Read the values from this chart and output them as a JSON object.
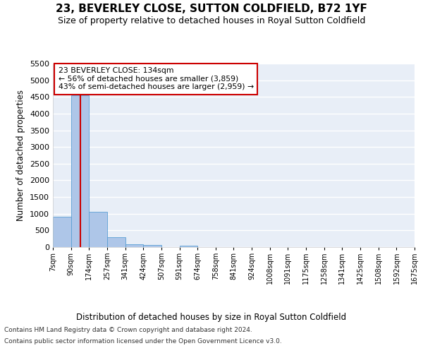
{
  "title": "23, BEVERLEY CLOSE, SUTTON COLDFIELD, B72 1YF",
  "subtitle": "Size of property relative to detached houses in Royal Sutton Coldfield",
  "xlabel": "Distribution of detached houses by size in Royal Sutton Coldfield",
  "ylabel": "Number of detached properties",
  "footnote1": "Contains HM Land Registry data © Crown copyright and database right 2024.",
  "footnote2": "Contains public sector information licensed under the Open Government Licence v3.0.",
  "property_size": 134,
  "property_label": "23 BEVERLEY CLOSE: 134sqm",
  "annotation_line1": "← 56% of detached houses are smaller (3,859)",
  "annotation_line2": "43% of semi-detached houses are larger (2,959) →",
  "bin_edges": [
    7,
    90,
    174,
    257,
    341,
    424,
    507,
    591,
    674,
    758,
    841,
    924,
    1008,
    1091,
    1175,
    1258,
    1341,
    1425,
    1508,
    1592,
    1675
  ],
  "bin_labels": [
    "7sqm",
    "90sqm",
    "174sqm",
    "257sqm",
    "341sqm",
    "424sqm",
    "507sqm",
    "591sqm",
    "674sqm",
    "758sqm",
    "841sqm",
    "924sqm",
    "1008sqm",
    "1091sqm",
    "1175sqm",
    "1258sqm",
    "1341sqm",
    "1425sqm",
    "1508sqm",
    "1592sqm",
    "1675sqm"
  ],
  "counts": [
    900,
    4550,
    1060,
    295,
    75,
    55,
    0,
    50,
    0,
    0,
    0,
    0,
    0,
    0,
    0,
    0,
    0,
    0,
    0,
    0
  ],
  "bar_color": "#aec6e8",
  "bar_edge_color": "#5a9fd4",
  "vline_color": "#cc0000",
  "vline_x": 134,
  "annotation_box_color": "#cc0000",
  "ylim": [
    0,
    5500
  ],
  "yticks": [
    0,
    500,
    1000,
    1500,
    2000,
    2500,
    3000,
    3500,
    4000,
    4500,
    5000,
    5500
  ],
  "background_color": "#e8eef7",
  "grid_color": "#ffffff",
  "title_fontsize": 11,
  "subtitle_fontsize": 9
}
